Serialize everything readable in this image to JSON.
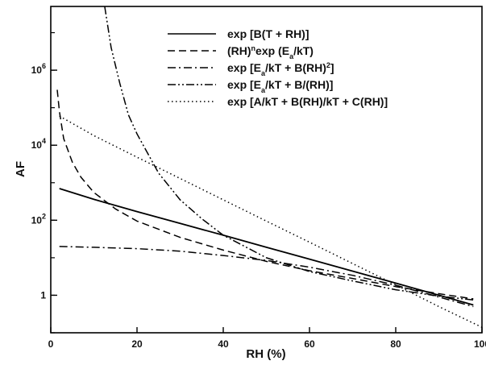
{
  "chart_data": {
    "type": "line",
    "title": "",
    "xlabel": "RH (%)",
    "ylabel": "AF",
    "xlim": [
      0,
      100
    ],
    "ylim": [
      0.1,
      50000000
    ],
    "yscale": "log",
    "grid": false,
    "legend_position": "top-right",
    "x_ticks": [
      {
        "value": 0,
        "label": "0"
      },
      {
        "value": 20,
        "label": "20"
      },
      {
        "value": 40,
        "label": "40"
      },
      {
        "value": 60,
        "label": "60"
      },
      {
        "value": 80,
        "label": "80"
      },
      {
        "value": 100,
        "label": "100"
      }
    ],
    "y_ticks": [
      {
        "value": 1,
        "base": "1",
        "exp": ""
      },
      {
        "value": 100,
        "base": "10",
        "exp": "2"
      },
      {
        "value": 10000,
        "base": "10",
        "exp": "4"
      },
      {
        "value": 1000000,
        "base": "10",
        "exp": "6"
      }
    ],
    "series": [
      {
        "name": "exp [B(T + RH)]",
        "legend": [
          {
            "t": "exp [B(T + RH)]"
          }
        ],
        "dash": "solid",
        "x": [
          2,
          10,
          20,
          30,
          40,
          50,
          60,
          70,
          80,
          90,
          98
        ],
        "y": [
          700,
          360,
          170,
          82,
          40,
          19,
          9.2,
          4.4,
          2.1,
          1.0,
          0.55
        ]
      },
      {
        "name": "(RH)nexp (Ea/kT)",
        "legend": [
          {
            "t": "(RH)"
          },
          {
            "t": "n",
            "sup": true
          },
          {
            "t": "exp (E"
          },
          {
            "t": "a",
            "sub": true
          },
          {
            "t": "/kT)"
          }
        ],
        "dash": "dashed",
        "x": [
          1.5,
          2,
          3,
          5,
          7,
          10,
          15,
          20,
          30,
          40,
          50,
          60,
          70,
          80,
          90,
          98
        ],
        "y": [
          300000,
          80000,
          15000,
          3500,
          1400,
          550,
          200,
          95,
          35,
          16,
          8,
          4.5,
          2.8,
          1.7,
          1.1,
          0.8
        ]
      },
      {
        "name": "exp [Ea/kT + B(RH)2]",
        "legend": [
          {
            "t": "exp [E"
          },
          {
            "t": "a",
            "sub": true
          },
          {
            "t": "/kT + B(RH)"
          },
          {
            "t": "2",
            "sup": true
          },
          {
            "t": "]"
          }
        ],
        "dash": "dashdot",
        "x": [
          2,
          10,
          20,
          30,
          40,
          50,
          60,
          70,
          80,
          90,
          98
        ],
        "y": [
          20,
          19,
          17.5,
          15,
          11.5,
          8.5,
          5.6,
          3.4,
          1.85,
          0.9,
          0.5
        ]
      },
      {
        "name": "exp [Ea/kT + B/(RH)]",
        "legend": [
          {
            "t": "exp [E"
          },
          {
            "t": "a",
            "sub": true
          },
          {
            "t": "/kT + B/(RH)]"
          }
        ],
        "dash": "dashdotdot",
        "x": [
          12.5,
          14,
          16,
          18,
          20,
          25,
          30,
          35,
          40,
          50,
          60,
          70,
          80,
          90,
          98
        ],
        "y": [
          50000000,
          4000000,
          450000,
          65000,
          20000,
          1800,
          350,
          110,
          40,
          10,
          4.3,
          2.4,
          1.4,
          0.95,
          0.75
        ]
      },
      {
        "name": "exp [A/kT + B(RH)/kT + C(RH)]",
        "legend": [
          {
            "t": "exp [A/kT + B(RH)/kT + C(RH)]"
          }
        ],
        "dash": "dotted",
        "x": [
          2,
          10,
          20,
          30,
          40,
          50,
          60,
          70,
          80,
          90,
          100
        ],
        "y": [
          60000,
          18000,
          4800,
          1300,
          350,
          95,
          26,
          7,
          1.9,
          0.5,
          0.14
        ]
      }
    ]
  }
}
